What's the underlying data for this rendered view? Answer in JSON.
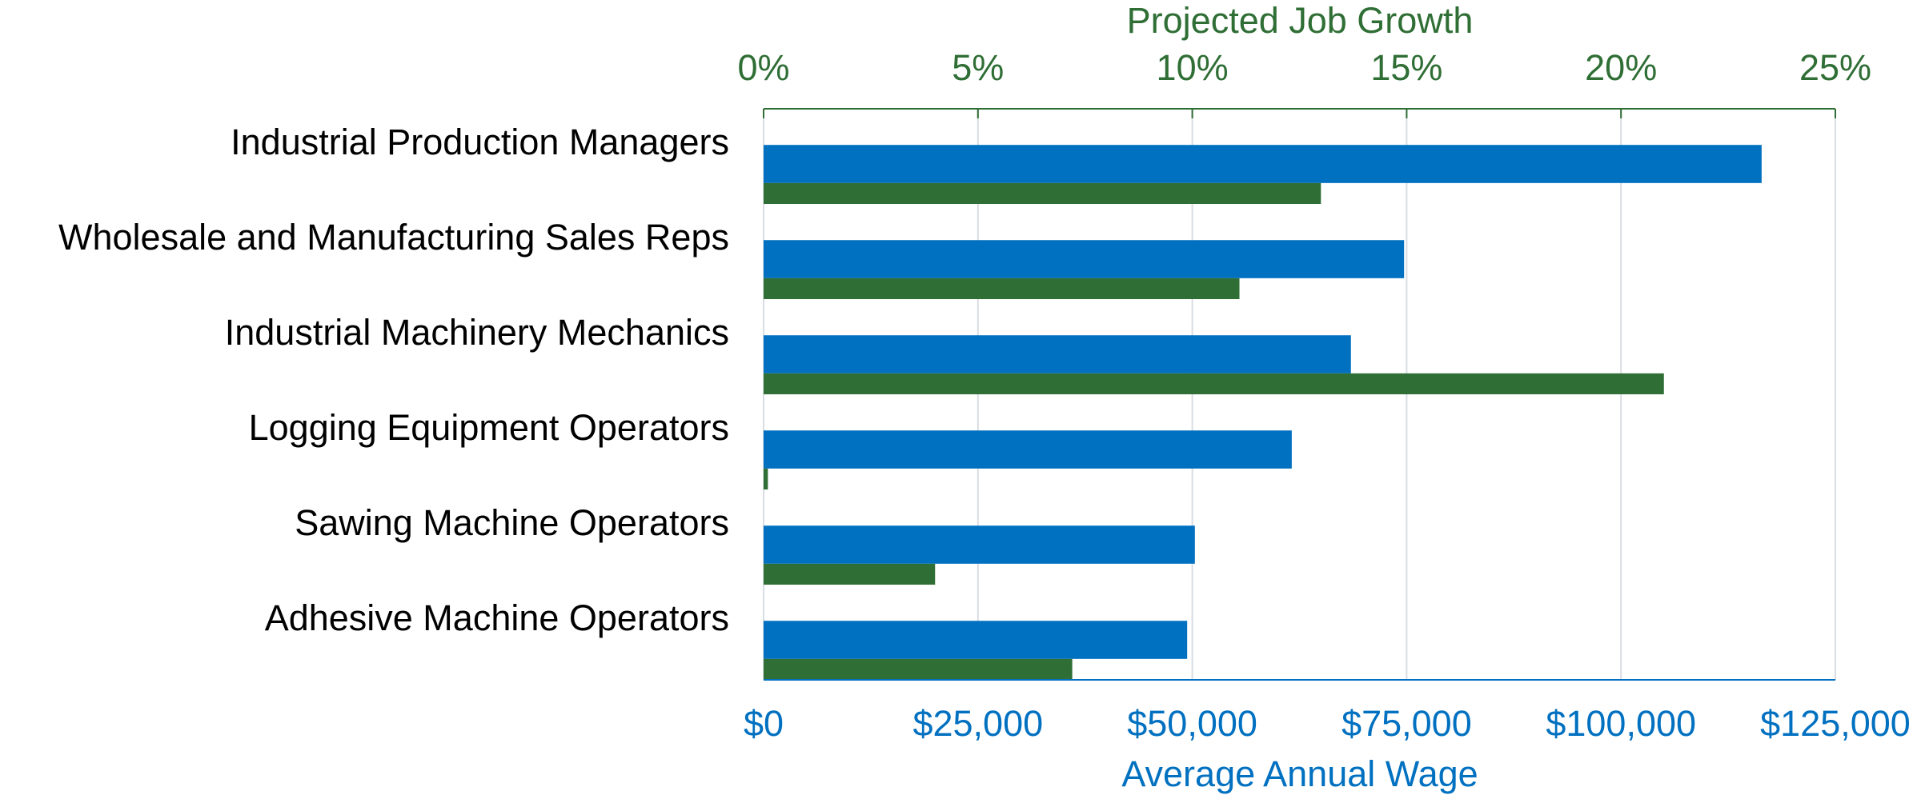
{
  "chart_data": {
    "type": "bar",
    "orientation": "horizontal",
    "x2label": "Projected Job Growth",
    "xlabel": "Average Annual Wage",
    "categories": [
      "Industrial Production Managers",
      "Wholesale and Manufacturing Sales Reps",
      "Industrial Machinery Mechanics",
      "Logging Equipment Operators",
      "Sawing Machine Operators",
      "Adhesive Machine Operators"
    ],
    "series": [
      {
        "color": "#0070c0",
        "axis": "x",
        "values": [
          116400,
          74700,
          68500,
          61600,
          50300,
          49400
        ]
      },
      {
        "color": "#2f6e35",
        "axis": "x2",
        "values": [
          13.0,
          11.1,
          21.0,
          0.1,
          4.0,
          7.2
        ]
      }
    ],
    "xlim": [
      0,
      125000
    ],
    "xticks": [
      {
        "value": 0,
        "label": "$0"
      },
      {
        "value": 25000,
        "label": "$25,000"
      },
      {
        "value": 50000,
        "label": "$50,000"
      },
      {
        "value": 75000,
        "label": "$75,000"
      },
      {
        "value": 100000,
        "label": "$100,000"
      },
      {
        "value": 125000,
        "label": "$125,000"
      }
    ],
    "x2lim": [
      0,
      25
    ],
    "x2ticks": [
      {
        "value": 0,
        "label": "0%"
      },
      {
        "value": 5,
        "label": "5%"
      },
      {
        "value": 10,
        "label": "10%"
      },
      {
        "value": 15,
        "label": "15%"
      },
      {
        "value": 20,
        "label": "20%"
      },
      {
        "value": 25,
        "label": "25%"
      }
    ],
    "grid": true
  }
}
